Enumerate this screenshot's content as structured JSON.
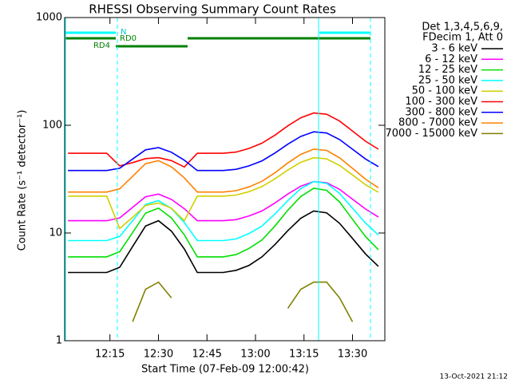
{
  "chart_data": {
    "type": "line",
    "title": "RHESSI Observing Summary Count Rates",
    "x_label": "Start Time (07-Feb-09 12:00:42)",
    "y_label": "Count Rate (s⁻¹ detector⁻¹)",
    "log_y": true,
    "xlim": [
      1,
      100
    ],
    "xticks": [
      {
        "value": 15,
        "label": "12:15"
      },
      {
        "value": 30,
        "label": "12:30"
      },
      {
        "value": 45,
        "label": "12:45"
      },
      {
        "value": 60,
        "label": "13:00"
      },
      {
        "value": 75,
        "label": "13:15"
      },
      {
        "value": 90,
        "label": "13:30"
      }
    ],
    "ylim": [
      1,
      1000
    ],
    "yticks": [
      1,
      10,
      100,
      1000
    ],
    "legend_title": [
      "Det 1,3,4,5,6,9,",
      "FDecim 1, Att 0"
    ],
    "annotations": [
      "N",
      "RD0",
      "RD4"
    ],
    "x": [
      2,
      6,
      10,
      14,
      18,
      22,
      26,
      30,
      34,
      38,
      42,
      46,
      50,
      54,
      58,
      62,
      66,
      70,
      74,
      78,
      82,
      86,
      90,
      94,
      98
    ],
    "series": [
      {
        "name": "3 - 6 keV",
        "color": "#000000",
        "values": [
          4.3,
          4.3,
          4.3,
          4.3,
          4.8,
          7.5,
          11.6,
          13,
          10.4,
          7.1,
          4.3,
          4.3,
          4.3,
          4.5,
          5.0,
          6.0,
          7.8,
          10.5,
          13.7,
          16,
          15.4,
          12.3,
          8.9,
          6.4,
          4.9
        ]
      },
      {
        "name": "6 - 12 keV",
        "color": "#ff00ff",
        "values": [
          13,
          13,
          13,
          13,
          13.8,
          17.3,
          21.7,
          23,
          20.5,
          16.8,
          13,
          13,
          13,
          13.3,
          14.4,
          16.0,
          19.0,
          23.0,
          27.2,
          30,
          29.3,
          25.4,
          20.6,
          16.7,
          14.1
        ]
      },
      {
        "name": "12 - 25 keV",
        "color": "#00e000",
        "values": [
          6,
          6,
          6,
          6,
          6.7,
          10.1,
          15.3,
          17,
          13.8,
          9.6,
          6,
          6,
          6,
          6.3,
          7.2,
          8.6,
          11.6,
          16.3,
          21.8,
          26,
          24.9,
          19.4,
          13.4,
          9.3,
          7.0
        ]
      },
      {
        "name": "25 - 50 keV",
        "color": "#00ffff",
        "values": [
          8.5,
          8.5,
          8.5,
          8.5,
          9.3,
          13.0,
          18.4,
          20,
          16.9,
          12.5,
          8.5,
          8.5,
          8.5,
          8.8,
          9.9,
          11.6,
          15.0,
          20.0,
          25.8,
          30,
          28.9,
          23.3,
          17.0,
          12.4,
          9.6
        ]
      },
      {
        "name": "50 - 100 keV",
        "color": "#d0d000",
        "values": [
          22,
          22,
          22,
          22,
          11,
          14,
          18,
          19,
          17,
          13,
          22,
          22,
          22,
          22.5,
          24.2,
          27.0,
          31.8,
          38.4,
          45.3,
          50,
          48.8,
          42.4,
          34.6,
          28.1,
          23.9
        ]
      },
      {
        "name": "100 - 300 keV",
        "color": "#ff0000",
        "values": [
          55,
          55,
          55,
          55,
          42,
          45,
          49,
          50,
          47,
          41,
          55,
          55,
          55,
          56.4,
          61.0,
          68.2,
          81.0,
          98.8,
          117.3,
          130,
          126.6,
          109.5,
          88.3,
          71.2,
          59.9
        ]
      },
      {
        "name": "300 - 800 keV",
        "color": "#0000ff",
        "values": [
          38,
          38,
          38,
          38,
          39.9,
          48.6,
          59.1,
          62,
          56.2,
          47.4,
          38,
          38,
          38,
          39.0,
          42.0,
          46.7,
          55.2,
          66.8,
          78.7,
          87,
          84.8,
          73.7,
          59.9,
          48.7,
          41.3
        ]
      },
      {
        "name": "800 - 7000 keV",
        "color": "#ff8000",
        "values": [
          24,
          24,
          24,
          24,
          25.7,
          33.6,
          44.0,
          47,
          41.1,
          32.5,
          24,
          24,
          24,
          24.7,
          26.8,
          30.2,
          36.2,
          44.7,
          53.7,
          60,
          58.4,
          49.9,
          39.8,
          31.6,
          26.3
        ]
      },
      {
        "name": "7000 - 15000 keV",
        "color": "#808000",
        "values": [
          null,
          null,
          null,
          null,
          null,
          1.5,
          3.0,
          3.5,
          2.5,
          null,
          null,
          null,
          null,
          null,
          null,
          null,
          null,
          2.0,
          3.0,
          3.5,
          3.5,
          2.5,
          1.5,
          null,
          null
        ]
      }
    ]
  },
  "footer": "13-Oct-2021 21:12"
}
